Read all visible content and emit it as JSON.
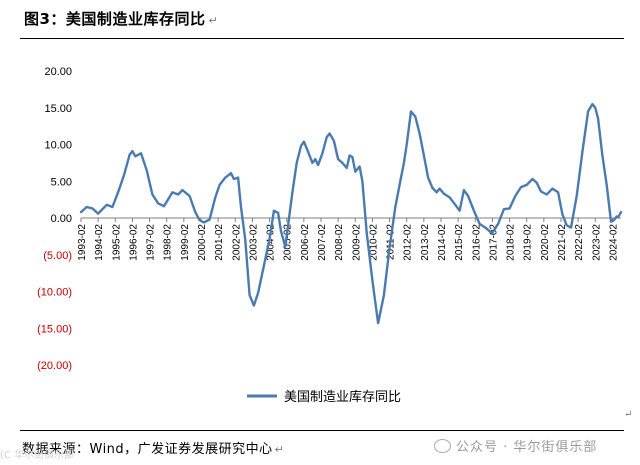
{
  "header": {
    "figure_title": "图3：美国制造业库存同比",
    "return_mark": "↵"
  },
  "footer": {
    "source_text": "数据来源：Wind，广发证券发展研究中心",
    "return_mark": "↵",
    "watermark_text": "公众号 · 华尔街俱乐部",
    "edge_text": "(C 华尔街俱乐部",
    "right_mark": "↵"
  },
  "colors": {
    "line": "#4a7bb0",
    "negative_label": "#c00000",
    "axis": "#808080"
  },
  "chart_data": {
    "type": "line",
    "title": "",
    "xlabel": "",
    "ylabel": "",
    "ylim": [
      -20,
      20
    ],
    "yticks": [
      20,
      15,
      10,
      5,
      0,
      -5,
      -10,
      -15,
      -20
    ],
    "ytick_labels": [
      "20.00",
      "15.00",
      "10.00",
      "5.00",
      "0.00",
      "(5.00)",
      "(10.00)",
      "(15.00)",
      "(20.00)"
    ],
    "x_start": "1993-02",
    "x_end": "2024-08",
    "x_tick_labels": [
      "1993-02",
      "1994-02",
      "1995-02",
      "1996-02",
      "1997-02",
      "1998-02",
      "1999-02",
      "2000-02",
      "2001-02",
      "2002-02",
      "2003-02",
      "2004-02",
      "2005-02",
      "2006-02",
      "2007-02",
      "2008-02",
      "2009-02",
      "2010-02",
      "2011-02",
      "2012-02",
      "2013-02",
      "2014-02",
      "2015-02",
      "2016-02",
      "2017-02",
      "2018-02",
      "2019-02",
      "2020-02",
      "2021-02",
      "2022-02",
      "2023-02",
      "2024-02"
    ],
    "grid": false,
    "legend_position": "bottom",
    "series": [
      {
        "name": "美国制造业库存同比",
        "points": [
          [
            "1993-02",
            0.8
          ],
          [
            "1993-06",
            1.5
          ],
          [
            "1993-10",
            1.3
          ],
          [
            "1994-02",
            0.6
          ],
          [
            "1994-08",
            1.8
          ],
          [
            "1994-12",
            1.5
          ],
          [
            "1995-04",
            3.5
          ],
          [
            "1995-08",
            5.8
          ],
          [
            "1995-12",
            8.6
          ],
          [
            "1996-02",
            9.1
          ],
          [
            "1996-04",
            8.4
          ],
          [
            "1996-08",
            8.8
          ],
          [
            "1996-12",
            6.5
          ],
          [
            "1997-04",
            3.2
          ],
          [
            "1997-08",
            2.0
          ],
          [
            "1997-12",
            1.6
          ],
          [
            "1998-02",
            2.2
          ],
          [
            "1998-06",
            3.5
          ],
          [
            "1998-10",
            3.2
          ],
          [
            "1999-01",
            3.8
          ],
          [
            "1999-06",
            3.0
          ],
          [
            "1999-10",
            0.8
          ],
          [
            "2000-01",
            -0.3
          ],
          [
            "2000-04",
            -0.6
          ],
          [
            "2000-08",
            -0.2
          ],
          [
            "2000-12",
            2.8
          ],
          [
            "2001-03",
            4.5
          ],
          [
            "2001-07",
            5.5
          ],
          [
            "2001-11",
            6.1
          ],
          [
            "2002-01",
            5.3
          ],
          [
            "2002-04",
            5.5
          ],
          [
            "2002-06",
            1.5
          ],
          [
            "2002-09",
            -3.0
          ],
          [
            "2002-12",
            -10.5
          ],
          [
            "2003-03",
            -11.9
          ],
          [
            "2003-06",
            -10.2
          ],
          [
            "2003-10",
            -6.5
          ],
          [
            "2004-02",
            -2.8
          ],
          [
            "2004-05",
            1.0
          ],
          [
            "2004-08",
            0.7
          ],
          [
            "2004-10",
            -1.8
          ],
          [
            "2005-01",
            -3.9
          ],
          [
            "2005-03",
            -1.0
          ],
          [
            "2005-06",
            3.5
          ],
          [
            "2005-09",
            7.5
          ],
          [
            "2005-12",
            9.8
          ],
          [
            "2006-02",
            10.4
          ],
          [
            "2006-05",
            9.0
          ],
          [
            "2006-08",
            7.5
          ],
          [
            "2006-10",
            8.0
          ],
          [
            "2006-12",
            7.2
          ],
          [
            "2007-03",
            8.8
          ],
          [
            "2007-06",
            11.0
          ],
          [
            "2007-08",
            11.5
          ],
          [
            "2007-11",
            10.5
          ],
          [
            "2008-02",
            8.0
          ],
          [
            "2008-05",
            7.5
          ],
          [
            "2008-08",
            6.8
          ],
          [
            "2008-10",
            8.5
          ],
          [
            "2008-12",
            8.3
          ],
          [
            "2009-02",
            6.3
          ],
          [
            "2009-05",
            7.0
          ],
          [
            "2009-07",
            5.0
          ],
          [
            "2009-10",
            -2.0
          ],
          [
            "2010-02",
            -8.5
          ],
          [
            "2010-06",
            -14.3
          ],
          [
            "2010-10",
            -10.5
          ],
          [
            "2011-02",
            -4.0
          ],
          [
            "2011-06",
            1.5
          ],
          [
            "2011-09",
            4.5
          ],
          [
            "2011-12",
            7.5
          ],
          [
            "2012-02",
            10.0
          ],
          [
            "2012-05",
            14.5
          ],
          [
            "2012-08",
            13.8
          ],
          [
            "2012-11",
            11.5
          ],
          [
            "2013-02",
            8.5
          ],
          [
            "2013-05",
            5.5
          ],
          [
            "2013-08",
            4.1
          ],
          [
            "2013-11",
            3.5
          ],
          [
            "2014-01",
            4.0
          ],
          [
            "2014-04",
            3.3
          ],
          [
            "2014-08",
            2.8
          ],
          [
            "2014-12",
            1.8
          ],
          [
            "2015-03",
            1.0
          ],
          [
            "2015-06",
            3.8
          ],
          [
            "2015-09",
            3.0
          ],
          [
            "2016-01",
            1.0
          ],
          [
            "2016-05",
            -0.8
          ],
          [
            "2016-09",
            -1.3
          ],
          [
            "2016-12",
            -1.8
          ],
          [
            "2017-02",
            -2.0
          ],
          [
            "2017-06",
            -0.8
          ],
          [
            "2017-10",
            1.2
          ],
          [
            "2018-02",
            1.3
          ],
          [
            "2018-06",
            3.0
          ],
          [
            "2018-10",
            4.2
          ],
          [
            "2019-02",
            4.5
          ],
          [
            "2019-06",
            5.3
          ],
          [
            "2019-09",
            4.8
          ],
          [
            "2019-12",
            3.6
          ],
          [
            "2020-04",
            3.2
          ],
          [
            "2020-08",
            4.0
          ],
          [
            "2020-12",
            3.5
          ],
          [
            "2021-03",
            0.5
          ],
          [
            "2021-06",
            -1.0
          ],
          [
            "2021-09",
            -1.3
          ],
          [
            "2022-01",
            3.0
          ],
          [
            "2022-05",
            9.0
          ],
          [
            "2022-09",
            14.5
          ],
          [
            "2022-12",
            15.5
          ],
          [
            "2023-02",
            15.0
          ],
          [
            "2023-04",
            13.5
          ],
          [
            "2023-07",
            8.5
          ],
          [
            "2023-10",
            4.5
          ],
          [
            "2024-01",
            -0.5
          ],
          [
            "2024-03",
            -0.3
          ],
          [
            "2024-05",
            0.2
          ],
          [
            "2024-06",
            0.1
          ],
          [
            "2024-08",
            0.8
          ]
        ]
      }
    ]
  }
}
